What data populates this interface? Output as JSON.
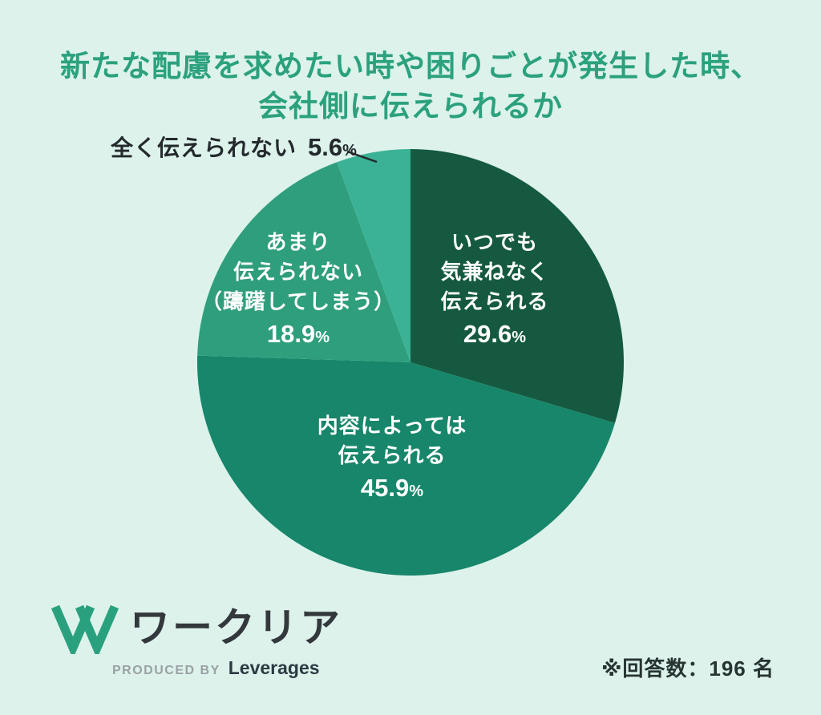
{
  "title": {
    "line1": "新たな配慮を求めたい時や困りごとが発生した時、",
    "line2": "会社側に伝えられるか"
  },
  "percent_sign": "%",
  "chart_data": {
    "type": "pie",
    "title": "新たな配慮を求めたい時や困りごとが発生した時、会社側に伝えられるか",
    "start_angle": "12-oclock",
    "direction": "clockwise",
    "respondents_note": "※回答数：196 名",
    "segments": [
      {
        "label": "いつでも気兼ねなく伝えられる",
        "label_lines": [
          "いつでも",
          "気兼ねなく",
          "伝えられる"
        ],
        "value": 29.6,
        "display": "29.6",
        "color": "#155a40",
        "label_color": "#ffffff",
        "label_position": "inside"
      },
      {
        "label": "内容によっては伝えられる",
        "label_lines": [
          "内容によっては",
          "伝えられる"
        ],
        "value": 45.9,
        "display": "45.9",
        "color": "#17866a",
        "label_color": "#ffffff",
        "label_position": "inside"
      },
      {
        "label": "あまり伝えられない（躊躇してしまう）",
        "label_lines": [
          "あまり",
          "伝えられない",
          "（躊躇してしまう）"
        ],
        "value": 18.9,
        "display": "18.9",
        "color": "#2f9e7c",
        "label_color": "#ffffff",
        "label_position": "inside"
      },
      {
        "label": "全く伝えられない",
        "label_lines": [
          "全く伝えられない"
        ],
        "value": 5.6,
        "display": "5.6",
        "color": "#3bb295",
        "label_color": "#23292c",
        "label_position": "outside-callout"
      }
    ]
  },
  "footer": {
    "logo_name": "ワークリア",
    "produced_by": "PRODUCED BY",
    "producer": "Leverages",
    "note": "※回答数：196 名"
  },
  "colors": {
    "background": "#dcf2eb",
    "title": "#2ba17d",
    "logo_green": "#2aa17e",
    "dark_text": "#23292c"
  }
}
